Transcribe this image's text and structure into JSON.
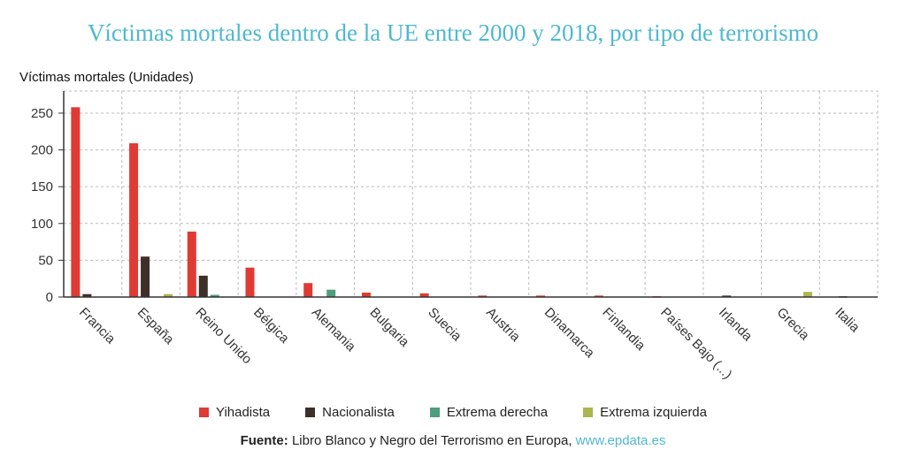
{
  "chart_data": {
    "type": "bar",
    "title": "Víctimas mortales dentro de la UE entre 2000 y 2018, por tipo de terrorismo",
    "ylabel": "Víctimas mortales (Unidades)",
    "xlabel": "",
    "ylim": [
      0,
      280
    ],
    "yticks": [
      0,
      50,
      100,
      150,
      200,
      250
    ],
    "grid": true,
    "legend_position": "bottom",
    "categories": [
      "Francia",
      "España",
      "Reino Unido",
      "Bélgica",
      "Alemania",
      "Bulgaria",
      "Suecia",
      "Austria",
      "Dinamarca",
      "Finlandia",
      "Países Bajo (...)",
      "Irlanda",
      "Grecia",
      "Italia"
    ],
    "series": [
      {
        "name": "Yihadista",
        "color": "#e03a35",
        "values": [
          258,
          209,
          89,
          40,
          19,
          6,
          5,
          2,
          2,
          2,
          1,
          0,
          0,
          0
        ]
      },
      {
        "name": "Nacionalista",
        "color": "#3d3028",
        "values": [
          4,
          55,
          29,
          0,
          0,
          0,
          0,
          0,
          0,
          0,
          0,
          2,
          0,
          1
        ]
      },
      {
        "name": "Extrema derecha",
        "color": "#4e9d7e",
        "values": [
          0,
          0,
          3,
          0,
          10,
          0,
          0,
          0,
          0,
          0,
          0,
          0,
          0,
          0
        ]
      },
      {
        "name": "Extrema izquierda",
        "color": "#adb553",
        "values": [
          0,
          4,
          0,
          0,
          0,
          0,
          0,
          0,
          0,
          0,
          0,
          0,
          7,
          0
        ]
      }
    ]
  },
  "source": {
    "label": "Fuente:",
    "text": "Libro Blanco y Negro del Terrorismo en Europa,",
    "link": "www.epdata.es"
  }
}
